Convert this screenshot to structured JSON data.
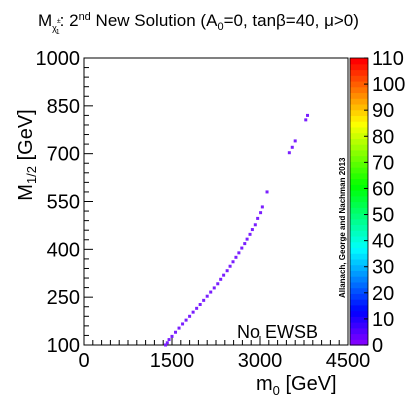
{
  "chart_data": {
    "type": "scatter",
    "title": {
      "symbol": "M",
      "sub": "χ",
      "sub_sup": "±",
      "sub_sub": "1",
      "pre_sup": ": 2",
      "sup": "nd",
      "post": " New Solution (A",
      "a_sub": "0",
      "tail": "=0, tanβ=40, μ>0)"
    },
    "xlabel": {
      "main": "m",
      "sub": "0",
      "rest": " [GeV]"
    },
    "ylabel": {
      "main": "M",
      "sub": "1/2",
      "rest": " [GeV]"
    },
    "xlim": [
      0,
      4500
    ],
    "ylim": [
      100,
      1000
    ],
    "xticks": [
      "0",
      "1500",
      "3000",
      "4500"
    ],
    "yticks": [
      "100",
      "250",
      "400",
      "550",
      "700",
      "850",
      "1000"
    ],
    "colorbar": {
      "range": [
        0,
        110
      ],
      "labels": [
        "0",
        "10",
        "20",
        "30",
        "40",
        "50",
        "60",
        "70",
        "80",
        "90",
        "100",
        "110"
      ]
    },
    "marker_color": "#7a1fff",
    "annotation": "No EWSB",
    "credit": "Allanach, George and Nachman 2013",
    "points": [
      {
        "x": 1390,
        "y": 100
      },
      {
        "x": 1420,
        "y": 107
      },
      {
        "x": 1450,
        "y": 117
      },
      {
        "x": 1500,
        "y": 127
      },
      {
        "x": 1560,
        "y": 140
      },
      {
        "x": 1620,
        "y": 153
      },
      {
        "x": 1680,
        "y": 166
      },
      {
        "x": 1740,
        "y": 178
      },
      {
        "x": 1800,
        "y": 190
      },
      {
        "x": 1860,
        "y": 203
      },
      {
        "x": 1920,
        "y": 215
      },
      {
        "x": 1980,
        "y": 227
      },
      {
        "x": 2040,
        "y": 240
      },
      {
        "x": 2100,
        "y": 253
      },
      {
        "x": 2160,
        "y": 266
      },
      {
        "x": 2220,
        "y": 279
      },
      {
        "x": 2280,
        "y": 292
      },
      {
        "x": 2330,
        "y": 306
      },
      {
        "x": 2380,
        "y": 319
      },
      {
        "x": 2440,
        "y": 333
      },
      {
        "x": 2490,
        "y": 347
      },
      {
        "x": 2540,
        "y": 361
      },
      {
        "x": 2590,
        "y": 375
      },
      {
        "x": 2640,
        "y": 389
      },
      {
        "x": 2690,
        "y": 404
      },
      {
        "x": 2740,
        "y": 418
      },
      {
        "x": 2780,
        "y": 432
      },
      {
        "x": 2830,
        "y": 447
      },
      {
        "x": 2870,
        "y": 462
      },
      {
        "x": 2920,
        "y": 477
      },
      {
        "x": 2960,
        "y": 497
      },
      {
        "x": 3010,
        "y": 515
      },
      {
        "x": 3040,
        "y": 533
      },
      {
        "x": 3120,
        "y": 580
      },
      {
        "x": 3500,
        "y": 703
      },
      {
        "x": 3550,
        "y": 720
      },
      {
        "x": 3600,
        "y": 740
      },
      {
        "x": 3780,
        "y": 806
      },
      {
        "x": 3810,
        "y": 820
      }
    ]
  }
}
